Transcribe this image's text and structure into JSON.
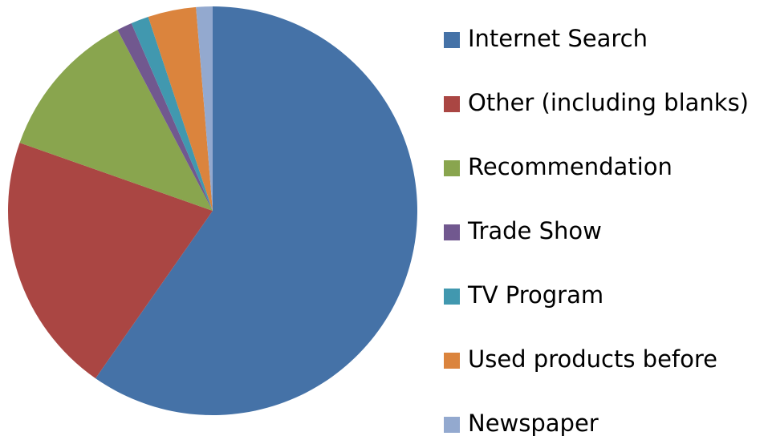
{
  "chart_data": {
    "type": "pie",
    "categories": [
      "Internet Search",
      "Other (including blanks)",
      "Recommendation",
      "Trade Show",
      "TV Program",
      "Used products before",
      "Newspaper"
    ],
    "values": [
      59.7,
      20.7,
      11.9,
      1.2,
      1.4,
      3.8,
      1.3
    ],
    "colors": [
      "#4572a7",
      "#aa4643",
      "#89a54e",
      "#71588f",
      "#4198af",
      "#db843d",
      "#93a9cf"
    ],
    "legend": "right"
  }
}
